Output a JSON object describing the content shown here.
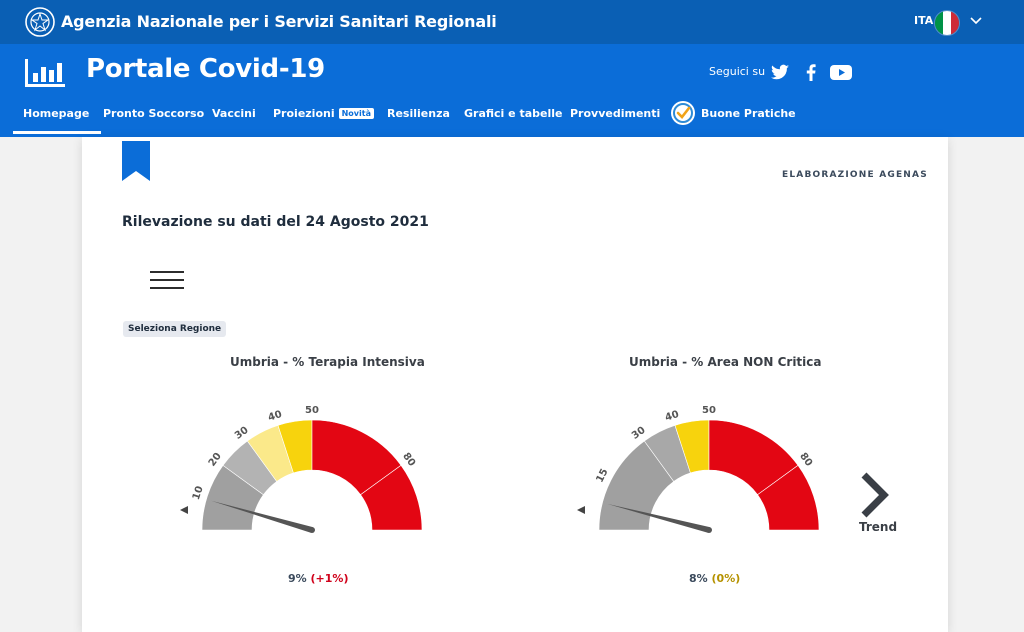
{
  "topbar": {
    "agency_name": "Agenzia Nazionale per i Servizi Sanitari Regionali",
    "language": "ITA",
    "flag_colors": [
      "#009246",
      "#ffffff",
      "#ce2b37"
    ]
  },
  "header": {
    "portal_title": "Portale Covid-19",
    "follow_label": "Seguici su",
    "social": [
      "twitter-icon",
      "facebook-icon",
      "youtube-icon"
    ]
  },
  "nav": {
    "items": [
      {
        "label": "Homepage",
        "active": true
      },
      {
        "label": "Pronto Soccorso"
      },
      {
        "label": "Vaccini"
      },
      {
        "label": "Proiezioni",
        "badge": "Novità"
      },
      {
        "label": "Resilienza"
      },
      {
        "label": "Grafici e tabelle"
      },
      {
        "label": "Provvedimenti"
      },
      {
        "label": "Buone Pratiche",
        "icon": "checkmark-badge-icon"
      }
    ]
  },
  "content": {
    "source_label": "ELABORAZIONE AGENAS",
    "survey_title": "Rilevazione su dati del 24 Agosto 2021",
    "region_chip": "Seleziona Regione",
    "trend_label": "Trend"
  },
  "colors": {
    "blue_dark": "#0a5fb4",
    "blue": "#0b6dd8",
    "gray_band": "#a0a0a0",
    "light_yellow": "#fbe98a",
    "yellow": "#f7d30d",
    "red": "#e30613",
    "delta_up": "#d0021b",
    "delta_zero": "#b59200"
  },
  "gauges": [
    {
      "title": "Umbria - % Terapia Intensiva",
      "value": 9,
      "value_text": "9%",
      "delta_text": "(+1%)",
      "delta_color": "#d0021b",
      "ticks": [
        "10",
        "20",
        "30",
        "40",
        "50",
        "80"
      ],
      "bands": [
        {
          "from": 0,
          "to": 20,
          "color": "#a0a0a0"
        },
        {
          "from": 20,
          "to": 30,
          "color": "#b3b3b3"
        },
        {
          "from": 30,
          "to": 40,
          "color": "#fbe98a"
        },
        {
          "from": 40,
          "to": 50,
          "color": "#f7d30d"
        },
        {
          "from": 50,
          "to": 80,
          "color": "#e30613"
        },
        {
          "from": 80,
          "to": 100,
          "color": "#e30613"
        }
      ]
    },
    {
      "title": "Umbria - % Area NON Critica",
      "value": 8,
      "value_text": "8%",
      "delta_text": "(0%)",
      "delta_color": "#b59200",
      "ticks": [
        "15",
        "30",
        "40",
        "50",
        "80"
      ],
      "bands": [
        {
          "from": 0,
          "to": 30,
          "color": "#a0a0a0"
        },
        {
          "from": 30,
          "to": 40,
          "color": "#a8a8a8"
        },
        {
          "from": 40,
          "to": 50,
          "color": "#f7d30d"
        },
        {
          "from": 50,
          "to": 80,
          "color": "#e30613"
        },
        {
          "from": 80,
          "to": 100,
          "color": "#e30613"
        }
      ]
    }
  ]
}
